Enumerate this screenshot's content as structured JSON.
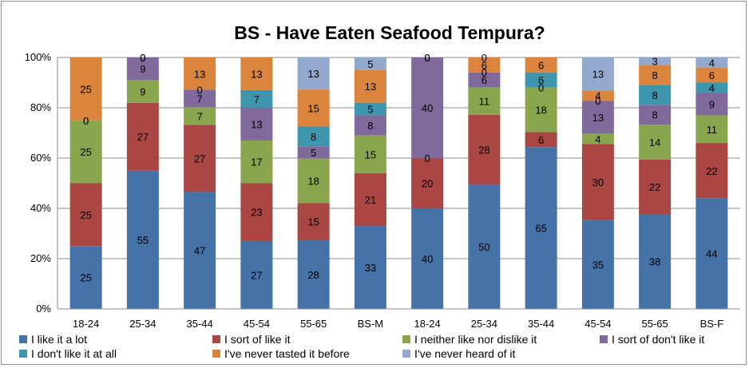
{
  "chart_data": {
    "type": "bar",
    "stacked": "percent",
    "title": "BS - Have Eaten Seafood Tempura?",
    "xlabel": "",
    "ylabel": "",
    "ylim": [
      0,
      100
    ],
    "y_ticks": [
      "0%",
      "20%",
      "40%",
      "60%",
      "80%",
      "100%"
    ],
    "grid": true,
    "legend_position": "bottom",
    "categories": [
      "18-24",
      "25-34",
      "35-44",
      "45-54",
      "55-65",
      "BS-M",
      "18-24",
      "25-34",
      "35-44",
      "45-54",
      "55-65",
      "BS-F"
    ],
    "series": [
      {
        "name": "I like it a lot",
        "color": "#4572A7",
        "values": [
          25,
          55,
          47,
          27,
          28,
          33,
          40,
          50,
          65,
          35,
          38,
          44
        ],
        "labels": [
          "25",
          "55",
          "47",
          "27",
          "28",
          "33",
          "40",
          "50",
          "65",
          "35",
          "38",
          "44"
        ]
      },
      {
        "name": "I sort of like it",
        "color": "#AA4643",
        "values": [
          25,
          27,
          27,
          23,
          15,
          21,
          20,
          28,
          6,
          30,
          22,
          22
        ],
        "labels": [
          "25",
          "27",
          "27",
          "23",
          "15",
          "21",
          "20",
          "28",
          "6",
          "30",
          "22",
          "22"
        ]
      },
      {
        "name": "I neither like nor dislike it",
        "color": "#89A54E",
        "values": [
          25,
          9,
          7,
          17,
          18,
          15,
          0,
          11,
          18,
          4,
          14,
          11
        ],
        "labels": [
          "25",
          "9",
          "7",
          "17",
          "18",
          "15",
          "0",
          "11",
          "18",
          "4",
          "14",
          "11"
        ]
      },
      {
        "name": "I sort of don't like it",
        "color": "#80699B",
        "values": [
          0,
          9,
          7,
          13,
          5,
          8,
          40,
          6,
          0,
          13,
          8,
          9
        ],
        "labels": [
          "0",
          "9",
          "7",
          "13",
          "5",
          "8",
          "40",
          "6",
          "0",
          "13",
          "8",
          "9"
        ]
      },
      {
        "name": "I don't like it at all",
        "color": "#3D96AE",
        "values": [
          0,
          0,
          0,
          7,
          8,
          5,
          0,
          0,
          6,
          0,
          8,
          4
        ],
        "labels": [
          "0",
          "0",
          "0",
          "7",
          "8",
          "5",
          "0",
          "0",
          "6",
          "0",
          "8",
          "4"
        ]
      },
      {
        "name": "I've never tasted it before",
        "color": "#DB843D",
        "values": [
          25,
          0,
          13,
          13,
          15,
          13,
          0,
          6,
          6,
          4,
          8,
          6
        ],
        "labels": [
          "25",
          "0",
          "13",
          "13",
          "15",
          "13",
          "0",
          "6",
          "6",
          "4",
          "8",
          "6"
        ]
      },
      {
        "name": "I've never heard of it",
        "color": "#92A8CD",
        "values": [
          0,
          0,
          0,
          0,
          13,
          5,
          0,
          0,
          0,
          13,
          3,
          4
        ],
        "labels": [
          "",
          "",
          "",
          "",
          "13",
          "5",
          "",
          "0",
          "",
          "13",
          "3",
          "4"
        ]
      }
    ]
  }
}
